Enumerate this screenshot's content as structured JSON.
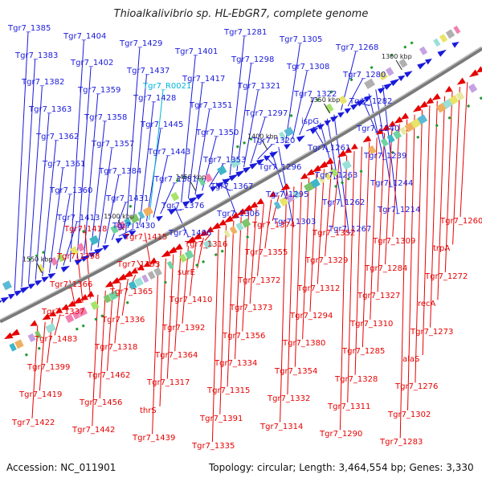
{
  "title": "Thioalkalivibrio sp. HL-EbGR7, complete genome",
  "accession": "Accession: NC_011901",
  "topology": "Topology: circular; Length: 3,464,554 bp; Genes: 3,330",
  "colors": {
    "forward_gene": "#1a1adc",
    "reverse_gene": "#e60000",
    "rna_gene": "#00b4d8",
    "backbone": "#7a7a7a"
  },
  "scale_marks": [
    {
      "label": "1300 kbp"
    },
    {
      "label": "1350 kbp"
    },
    {
      "label": "1400 kbp"
    },
    {
      "label": "1450 kbp"
    },
    {
      "label": "1500 kbp"
    },
    {
      "label": "1550 kbp"
    }
  ],
  "forward_labels": [
    "Tgr7_1385",
    "Tgr7_1383",
    "Tgr7_1382",
    "Tgr7_1363",
    "Tgr7_1362",
    "Tgr7_1361",
    "Tgr7_1360",
    "Tgr7_1413",
    "Tgr7_1404",
    "Tgr7_1402",
    "Tgr7_1359",
    "Tgr7_1358",
    "Tgr7_1357",
    "Tgr7_1384",
    "Tgr7_1431",
    "Tgr7_1430",
    "Tgr7_1429",
    "Tgr7_1437",
    "Tgr7_1428",
    "Tgr7_1445",
    "Tgr7_1443",
    "Tgr7_1381",
    "Tgr7_1376",
    "Tgr7_1406",
    "Tgr7_1401",
    "Tgr7_1417",
    "Tgr7_1351",
    "Tgr7_1350",
    "Tgr7_1353",
    "Tgr7_1367",
    "Tgr7_1306",
    "Tgr7_1281",
    "Tgr7_1298",
    "Tgr7_1321",
    "Tgr7_1297",
    "Tgr7_1320",
    "Tgr7_1296",
    "Tgr7_1295",
    "Tgr7_1303",
    "Tgr7_1305",
    "Tgr7_1308",
    "Tgr7_1322",
    "ispG",
    "Tgr7_1261",
    "Tgr7_1263",
    "Tgr7_1262",
    "Tgr7_1267",
    "Tgr7_1268",
    "Tgr7_1280",
    "Tgr7_1282",
    "Tgr7_1240",
    "Tgr7_1239",
    "Tgr7_1244",
    "Tgr7_1214"
  ],
  "rna_labels": [
    "Tgr7_R0021"
  ],
  "reverse_labels": [
    "Tgr7_1260",
    "trpA",
    "Tgr7_1272",
    "recA",
    "Tgr7_1273",
    "alaS",
    "Tgr7_1276",
    "Tgr7_1302",
    "Tgr7_1283",
    "Tgr7_1309",
    "Tgr7_1284",
    "Tgr7_1327",
    "Tgr7_1310",
    "Tgr7_1285",
    "Tgr7_1328",
    "Tgr7_1311",
    "Tgr7_1290",
    "Tgr7_1352",
    "Tgr7_1329",
    "Tgr7_1312",
    "Tgr7_1294",
    "Tgr7_1380",
    "Tgr7_1354",
    "Tgr7_1332",
    "Tgr7_1314",
    "Tgr7_1374",
    "Tgr7_1355",
    "Tgr7_1372",
    "Tgr7_1373",
    "Tgr7_1356",
    "Tgr7_1334",
    "Tgr7_1315",
    "Tgr7_1391",
    "Tgr7_1335",
    "Tgr7_1316",
    "surE",
    "Tgr7_1410",
    "Tgr7_1392",
    "Tgr7_1364",
    "Tgr7_1317",
    "thrS",
    "Tgr7_1439",
    "Tgr7_1415",
    "Tgr7_1393",
    "Tgr7_1365",
    "Tgr7_1336",
    "Tgr7_1318",
    "Tgr7_1462",
    "Tgr7_1456",
    "Tgr7_1442",
    "Tgr7_1418",
    "Tgr7_1398",
    "Tgr7_1366",
    "Tgr7_1337",
    "Tgr7_1483",
    "Tgr7_1399",
    "Tgr7_1419",
    "Tgr7_1422"
  ]
}
